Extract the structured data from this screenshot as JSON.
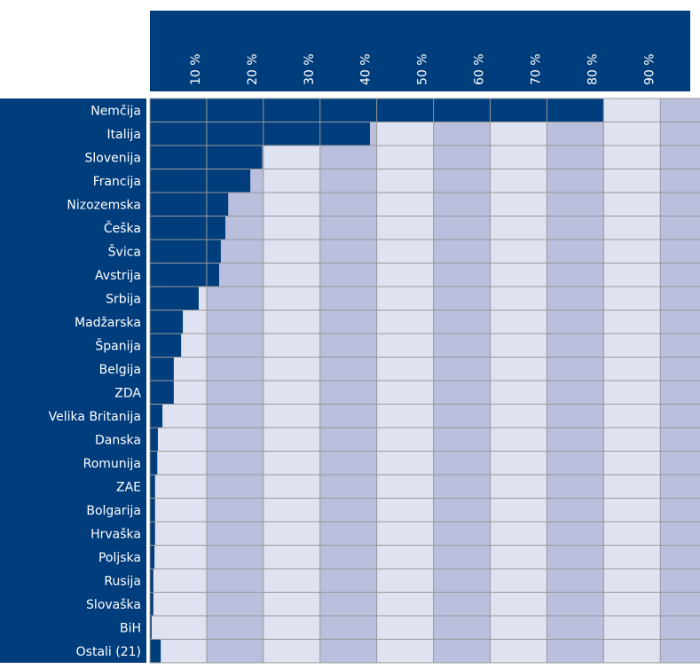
{
  "chart_data": {
    "type": "bar",
    "orientation": "horizontal",
    "categories": [
      "Nemčija",
      "Italija",
      "Slovenija",
      "Francija",
      "Nizozemska",
      "Češka",
      "Švica",
      "Avstrija",
      "Srbija",
      "Madžarska",
      "Španija",
      "Belgija",
      "ZDA",
      "Velika Britanija",
      "Danska",
      "Romunija",
      "ZAE",
      "Bolgarija",
      "Hrvaška",
      "Poljska",
      "Rusija",
      "Slovaška",
      "BiH",
      "Ostali (21)"
    ],
    "values": [
      80.0,
      38.8,
      19.8,
      17.7,
      13.8,
      13.3,
      12.5,
      12.2,
      8.6,
      5.8,
      5.5,
      4.2,
      4.2,
      2.2,
      1.4,
      1.3,
      0.9,
      0.9,
      0.9,
      0.8,
      0.6,
      0.6,
      0.3,
      1.9
    ],
    "color": "#003d7c",
    "xlim": [
      0,
      97
    ],
    "xticks": [
      {
        "value": 10,
        "label": "10 %"
      },
      {
        "value": 20,
        "label": "20 %"
      },
      {
        "value": 30,
        "label": "30 %"
      },
      {
        "value": 40,
        "label": "40 %"
      },
      {
        "value": 50,
        "label": "50 %"
      },
      {
        "value": 60,
        "label": "60 %"
      },
      {
        "value": 70,
        "label": "70 %"
      },
      {
        "value": 80,
        "label": "80 %"
      },
      {
        "value": 90,
        "label": "90 %"
      }
    ],
    "grid": true
  }
}
